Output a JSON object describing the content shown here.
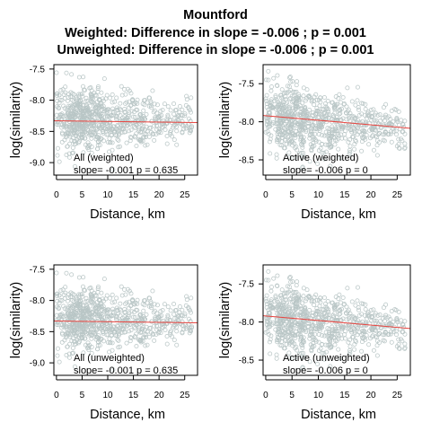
{
  "figure": {
    "title": "Mountford",
    "subtitle_1": "Weighted: Difference in slope = -0.006 ; p = 0.001",
    "subtitle_2": "Unweighted: Difference in slope = -0.006 ; p = 0.001"
  },
  "colors": {
    "points": "#b9c6c6",
    "fit_line": "#e8443f",
    "frame": "#000000"
  },
  "chart_data": [
    {
      "type": "scatter",
      "xlabel": "Distance, km",
      "ylabel": "log(similarity)",
      "xlim": [
        -0.5,
        27.5
      ],
      "ylim": [
        -9.2,
        -7.43
      ],
      "xticks": [
        0,
        5,
        10,
        15,
        20,
        25
      ],
      "yticks": [
        -7.5,
        -8.0,
        -8.5,
        -9.0
      ],
      "ytick_labels": [
        "-7.5",
        "-8.0",
        "-8.5",
        "-9.0"
      ],
      "legend_line_1": "All (weighted)",
      "legend_line_2": "slope= -0.001  p =  0.635",
      "fit": {
        "slope": -0.001,
        "intercept": -8.33
      },
      "points_summary": {
        "x_range": [
          0,
          26.5
        ],
        "y_center": -8.3,
        "y_spread": 0.28,
        "n_approx": 800
      }
    },
    {
      "type": "scatter",
      "xlabel": "Distance, km",
      "ylabel": "log(similarity)",
      "xlim": [
        -0.5,
        27.5
      ],
      "ylim": [
        -8.7,
        -7.25
      ],
      "xticks": [
        0,
        5,
        10,
        15,
        20,
        25
      ],
      "yticks": [
        -7.5,
        -8.0,
        -8.5
      ],
      "ytick_labels": [
        "-7.5",
        "-8.0",
        "-8.5"
      ],
      "legend_line_1": "Active (weighted)",
      "legend_line_2": "slope= -0.006  p =  0",
      "fit": {
        "slope": -0.006,
        "intercept": -7.92
      },
      "points_summary": {
        "x_range": [
          0,
          26.5
        ],
        "y_center": -7.95,
        "y_spread": 0.25,
        "n_approx": 800
      }
    },
    {
      "type": "scatter",
      "xlabel": "Distance, km",
      "ylabel": "log(similarity)",
      "xlim": [
        -0.5,
        27.5
      ],
      "ylim": [
        -9.2,
        -7.43
      ],
      "xticks": [
        0,
        5,
        10,
        15,
        20,
        25
      ],
      "yticks": [
        -7.5,
        -8.0,
        -8.5,
        -9.0
      ],
      "ytick_labels": [
        "-7.5",
        "-8.0",
        "-8.5",
        "-9.0"
      ],
      "legend_line_1": "All (unweighted)",
      "legend_line_2": "slope= -0.001  p =  0.635",
      "fit": {
        "slope": -0.001,
        "intercept": -8.33
      },
      "points_summary": {
        "x_range": [
          0,
          26.5
        ],
        "y_center": -8.3,
        "y_spread": 0.28,
        "n_approx": 800
      }
    },
    {
      "type": "scatter",
      "xlabel": "Distance, km",
      "ylabel": "log(similarity)",
      "xlim": [
        -0.5,
        27.5
      ],
      "ylim": [
        -8.7,
        -7.25
      ],
      "xticks": [
        0,
        5,
        10,
        15,
        20,
        25
      ],
      "yticks": [
        -7.5,
        -8.0,
        -8.5
      ],
      "ytick_labels": [
        "-7.5",
        "-8.0",
        "-8.5"
      ],
      "legend_line_1": "Active (unweighted)",
      "legend_line_2": "slope= -0.006  p =  0",
      "fit": {
        "slope": -0.006,
        "intercept": -7.92
      },
      "points_summary": {
        "x_range": [
          0,
          26.5
        ],
        "y_center": -7.95,
        "y_spread": 0.25,
        "n_approx": 800
      }
    }
  ]
}
